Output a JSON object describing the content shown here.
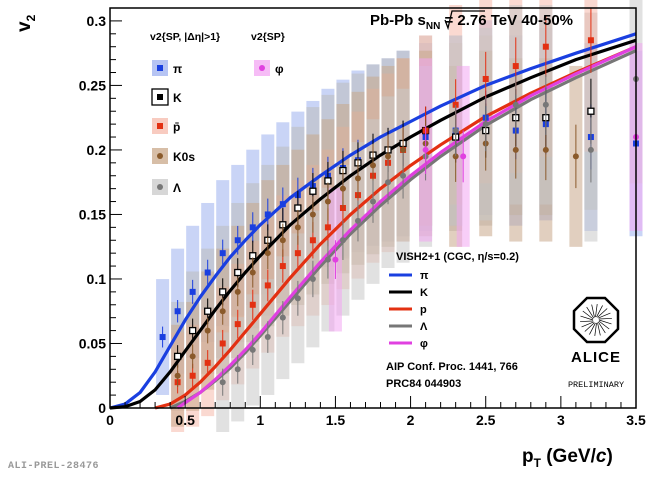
{
  "chart_data": {
    "type": "scatter",
    "title": "Pb-Pb √sNN = 2.76 TeV 40-50%",
    "title_parts": {
      "pre": "Pb-Pb ",
      "sqrt": "s",
      "sub": "NN",
      "post": " = 2.76 TeV 40-50%"
    },
    "xlabel": {
      "main": "p",
      "sub": "T",
      "rest": " (GeV/",
      "ital": "c",
      "close": ")"
    },
    "ylabel": {
      "main": "v",
      "sub": "2"
    },
    "xlim": [
      0,
      3.5
    ],
    "ylim": [
      0,
      0.31
    ],
    "x_ticks": [
      "0",
      "0.5",
      "1",
      "1.5",
      "2",
      "2.5",
      "3",
      "3.5"
    ],
    "y_ticks": [
      "0",
      "0.05",
      "0.1",
      "0.15",
      "0.2",
      "0.25",
      "0.3"
    ],
    "legend_data": {
      "header_sp": "v2{SP, |Δη|>1}",
      "header_phi": "v2{SP}",
      "entries": [
        "π",
        "K",
        "p̄",
        "K0s",
        "Λ",
        "φ"
      ]
    },
    "legend_model": {
      "title": "VISH2+1 (CGC, η/s=0.2)",
      "entries": [
        "π",
        "K",
        "p",
        "Λ",
        "φ"
      ]
    },
    "references": [
      "AIP Conf. Proc. 1441, 766",
      "PRC84 044903"
    ],
    "logo": {
      "text": "ALICE",
      "sub": "PRELIMINARY"
    },
    "series": [
      {
        "name": "π",
        "color": "#1a3fe0",
        "band": "#9db0ef",
        "marker": "square",
        "x": [
          0.35,
          0.45,
          0.55,
          0.65,
          0.75,
          0.85,
          0.95,
          1.05,
          1.15,
          1.25,
          1.35,
          1.45,
          1.55,
          1.65,
          1.75,
          1.85,
          1.95,
          2.1,
          2.3,
          2.5,
          2.7,
          2.9,
          3.2,
          3.5
        ],
        "y": [
          0.055,
          0.075,
          0.09,
          0.105,
          0.12,
          0.13,
          0.14,
          0.15,
          0.158,
          0.165,
          0.172,
          0.18,
          0.186,
          0.192,
          0.196,
          0.2,
          0.205,
          0.21,
          0.215,
          0.225,
          0.215,
          0.22,
          0.21,
          0.205
        ]
      },
      {
        "name": "K",
        "color": "#000000",
        "band": "#bbbbbb",
        "marker": "square-open",
        "x": [
          0.45,
          0.55,
          0.65,
          0.75,
          0.85,
          0.95,
          1.05,
          1.15,
          1.25,
          1.35,
          1.45,
          1.55,
          1.65,
          1.75,
          1.85,
          1.95,
          2.1,
          2.3,
          2.5,
          2.7,
          2.9,
          3.2
        ],
        "y": [
          0.04,
          0.06,
          0.075,
          0.09,
          0.105,
          0.118,
          0.13,
          0.142,
          0.155,
          0.168,
          0.176,
          0.184,
          0.19,
          0.196,
          0.2,
          0.205,
          0.215,
          0.21,
          0.215,
          0.225,
          0.225,
          0.23
        ]
      },
      {
        "name": "p̄",
        "color": "#e33012",
        "band": "#f5b9ab",
        "marker": "square",
        "x": [
          0.45,
          0.55,
          0.65,
          0.75,
          0.85,
          0.95,
          1.05,
          1.15,
          1.25,
          1.35,
          1.45,
          1.55,
          1.65,
          1.75,
          1.85,
          1.95,
          2.1,
          2.3,
          2.5,
          2.7,
          2.9,
          3.2
        ],
        "y": [
          0.02,
          0.025,
          0.035,
          0.05,
          0.065,
          0.08,
          0.095,
          0.11,
          0.12,
          0.13,
          0.14,
          0.155,
          0.165,
          0.18,
          0.19,
          0.2,
          0.215,
          0.235,
          0.255,
          0.265,
          0.28,
          0.285
        ]
      },
      {
        "name": "K0s",
        "color": "#8a5a2b",
        "band": "#c9a88a",
        "marker": "circle",
        "x": [
          0.45,
          0.55,
          0.65,
          0.75,
          0.85,
          0.95,
          1.05,
          1.15,
          1.25,
          1.35,
          1.45,
          1.55,
          1.65,
          1.75,
          1.85,
          1.95,
          2.1,
          2.3,
          2.5,
          2.7,
          2.9,
          3.1
        ],
        "y": [
          0.025,
          0.04,
          0.06,
          0.075,
          0.09,
          0.105,
          0.12,
          0.13,
          0.14,
          0.15,
          0.16,
          0.17,
          0.178,
          0.188,
          0.195,
          0.2,
          0.205,
          0.195,
          0.205,
          0.2,
          0.2,
          0.195
        ]
      },
      {
        "name": "Λ",
        "color": "#777777",
        "band": "#c9c9c9",
        "marker": "circle",
        "x": [
          0.75,
          0.85,
          0.95,
          1.05,
          1.15,
          1.25,
          1.35,
          1.45,
          1.55,
          1.65,
          1.75,
          1.85,
          1.95,
          2.1,
          2.3,
          2.5,
          2.7,
          2.9,
          3.2,
          3.5
        ],
        "y": [
          0.02,
          0.03,
          0.045,
          0.055,
          0.07,
          0.085,
          0.1,
          0.115,
          0.13,
          0.145,
          0.16,
          0.175,
          0.18,
          0.195,
          0.215,
          0.22,
          0.235,
          0.235,
          0.2,
          0.255
        ]
      },
      {
        "name": "φ",
        "color": "#e040e0",
        "band": "#f3a6f3",
        "marker": "circle",
        "x": [
          1.5,
          2.1,
          2.35,
          3.5
        ],
        "y": [
          0.115,
          0.2,
          0.195,
          0.21
        ]
      }
    ],
    "model": [
      {
        "name": "π",
        "color": "#1a3fe0",
        "x": [
          0,
          0.1,
          0.2,
          0.3,
          0.4,
          0.5,
          0.6,
          0.7,
          0.8,
          0.9,
          1.0,
          1.2,
          1.4,
          1.6,
          1.8,
          2.0,
          2.2,
          2.5,
          2.8,
          3.1,
          3.5
        ],
        "y": [
          0,
          0.003,
          0.012,
          0.028,
          0.048,
          0.068,
          0.086,
          0.102,
          0.117,
          0.13,
          0.142,
          0.163,
          0.18,
          0.196,
          0.21,
          0.222,
          0.234,
          0.25,
          0.263,
          0.275,
          0.29
        ]
      },
      {
        "name": "K",
        "color": "#000000",
        "x": [
          0,
          0.1,
          0.2,
          0.3,
          0.4,
          0.5,
          0.6,
          0.7,
          0.8,
          0.9,
          1.0,
          1.2,
          1.4,
          1.6,
          1.8,
          2.0,
          2.2,
          2.5,
          2.8,
          3.1,
          3.5
        ],
        "y": [
          0,
          0.001,
          0.005,
          0.014,
          0.028,
          0.044,
          0.06,
          0.076,
          0.091,
          0.105,
          0.118,
          0.142,
          0.162,
          0.18,
          0.196,
          0.21,
          0.223,
          0.241,
          0.256,
          0.27,
          0.285
        ]
      },
      {
        "name": "p",
        "color": "#e33012",
        "x": [
          0.3,
          0.4,
          0.5,
          0.6,
          0.7,
          0.8,
          0.9,
          1.0,
          1.2,
          1.4,
          1.6,
          1.8,
          2.0,
          2.2,
          2.5,
          2.8,
          3.1,
          3.5
        ],
        "y": [
          0,
          0.003,
          0.01,
          0.02,
          0.032,
          0.045,
          0.059,
          0.073,
          0.101,
          0.127,
          0.15,
          0.17,
          0.188,
          0.204,
          0.226,
          0.244,
          0.26,
          0.28
        ]
      },
      {
        "name": "Λ",
        "color": "#777777",
        "x": [
          0.4,
          0.5,
          0.6,
          0.7,
          0.8,
          0.9,
          1.0,
          1.2,
          1.4,
          1.6,
          1.8,
          2.0,
          2.2,
          2.5,
          2.8,
          3.1,
          3.5
        ],
        "y": [
          0,
          0.005,
          0.012,
          0.021,
          0.031,
          0.043,
          0.056,
          0.083,
          0.11,
          0.135,
          0.157,
          0.177,
          0.195,
          0.219,
          0.239,
          0.256,
          0.277
        ]
      },
      {
        "name": "φ",
        "color": "#e040e0",
        "x": [
          0.45,
          0.5,
          0.6,
          0.7,
          0.8,
          0.9,
          1.0,
          1.2,
          1.4,
          1.6,
          1.8,
          2.0,
          2.2,
          2.5,
          2.8,
          3.1,
          3.5
        ],
        "y": [
          0,
          0.004,
          0.012,
          0.022,
          0.033,
          0.045,
          0.058,
          0.086,
          0.113,
          0.138,
          0.16,
          0.18,
          0.198,
          0.222,
          0.242,
          0.259,
          0.28
        ]
      }
    ]
  },
  "footer": "ALI-PREL-28476"
}
